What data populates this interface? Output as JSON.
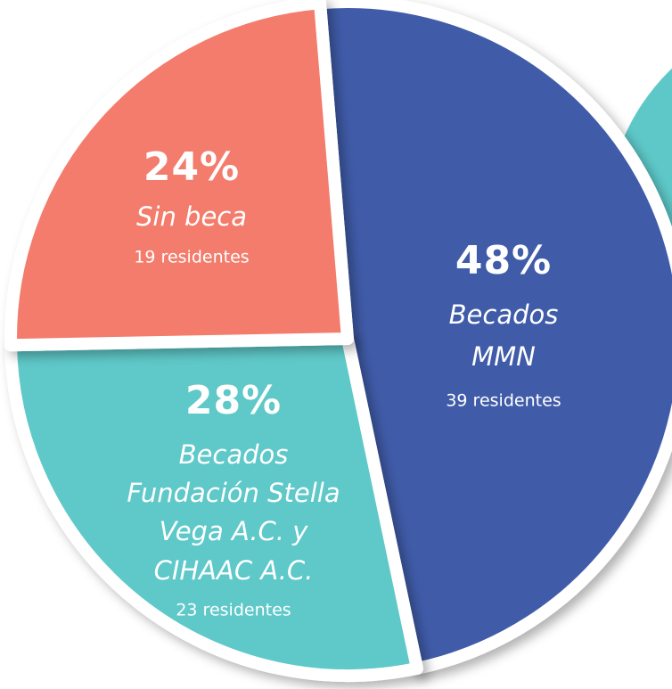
{
  "chart_data": {
    "type": "pie",
    "values": [
      48,
      28,
      24
    ],
    "value_labels": [
      "48%",
      "28%",
      "24%"
    ],
    "names": [
      [
        "Becados",
        "MMN"
      ],
      [
        "Becados",
        "Fundación Stella",
        "Vega A.C. y",
        "CIHAAC A.C."
      ],
      [
        "Sin beca"
      ]
    ],
    "details": [
      "39 residentes",
      "23 residentes",
      "19 residentes"
    ],
    "colors": [
      "#3f5ba9",
      "#5ec8c8",
      "#f37b6c"
    ]
  }
}
